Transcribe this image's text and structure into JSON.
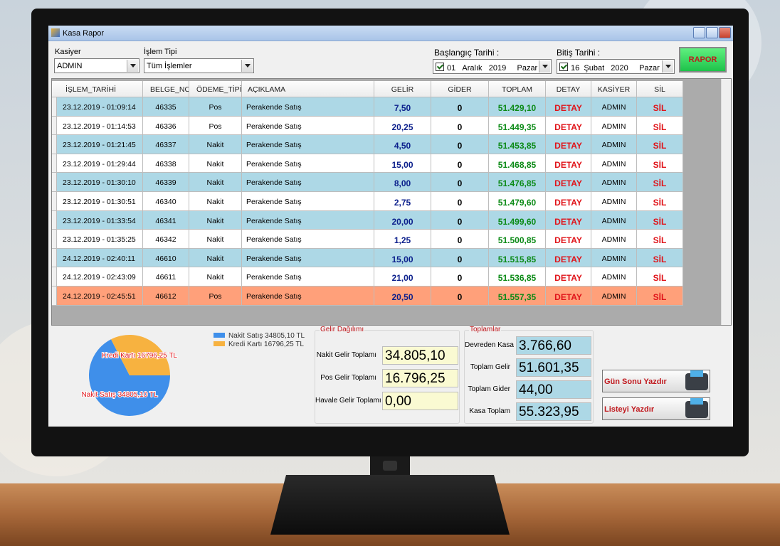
{
  "window": {
    "title": "Kasa Rapor"
  },
  "filters": {
    "kasiyer_label": "Kasiyer",
    "kasiyer": "ADMIN",
    "islem_label": "İşlem Tipi",
    "islem": "Tüm İşlemler",
    "start_label": "Başlangıç Tarihi :",
    "start": {
      "day": "01",
      "month": "Aralık",
      "year": "2019",
      "weekday": "Pazar"
    },
    "end_label": "Bitiş Tarihi :",
    "end": {
      "day": "16",
      "month": "Şubat",
      "year": "2020",
      "weekday": "Pazar"
    },
    "rapor": "RAPOR"
  },
  "table": {
    "columns": [
      "İŞLEM_TARİHİ",
      "BELGE_NO",
      "ÖDEME_TİPİ",
      "AÇIKLAMA",
      "GELİR",
      "GİDER",
      "TOPLAM",
      "DETAY",
      "KASİYER",
      "SİL"
    ],
    "rows": [
      [
        "23.12.2019 - 01:09:14",
        "46335",
        "Pos",
        "Perakende Satış",
        "7,50",
        "0",
        "51.429,10",
        "DETAY",
        "ADMIN",
        "SİL"
      ],
      [
        "23.12.2019 - 01:14:53",
        "46336",
        "Pos",
        "Perakende Satış",
        "20,25",
        "0",
        "51.449,35",
        "DETAY",
        "ADMIN",
        "SİL"
      ],
      [
        "23.12.2019 - 01:21:45",
        "46337",
        "Nakit",
        "Perakende Satış",
        "4,50",
        "0",
        "51.453,85",
        "DETAY",
        "ADMIN",
        "SİL"
      ],
      [
        "23.12.2019 - 01:29:44",
        "46338",
        "Nakit",
        "Perakende Satış",
        "15,00",
        "0",
        "51.468,85",
        "DETAY",
        "ADMIN",
        "SİL"
      ],
      [
        "23.12.2019 - 01:30:10",
        "46339",
        "Nakit",
        "Perakende Satış",
        "8,00",
        "0",
        "51.476,85",
        "DETAY",
        "ADMIN",
        "SİL"
      ],
      [
        "23.12.2019 - 01:30:51",
        "46340",
        "Nakit",
        "Perakende Satış",
        "2,75",
        "0",
        "51.479,60",
        "DETAY",
        "ADMIN",
        "SİL"
      ],
      [
        "23.12.2019 - 01:33:54",
        "46341",
        "Nakit",
        "Perakende Satış",
        "20,00",
        "0",
        "51.499,60",
        "DETAY",
        "ADMIN",
        "SİL"
      ],
      [
        "23.12.2019 - 01:35:25",
        "46342",
        "Nakit",
        "Perakende Satış",
        "1,25",
        "0",
        "51.500,85",
        "DETAY",
        "ADMIN",
        "SİL"
      ],
      [
        "24.12.2019 - 02:40:11",
        "46610",
        "Nakit",
        "Perakende Satış",
        "15,00",
        "0",
        "51.515,85",
        "DETAY",
        "ADMIN",
        "SİL"
      ],
      [
        "24.12.2019 - 02:43:09",
        "46611",
        "Nakit",
        "Perakende Satış",
        "21,00",
        "0",
        "51.536,85",
        "DETAY",
        "ADMIN",
        "SİL"
      ],
      [
        "24.12.2019 - 02:45:51",
        "46612",
        "Pos",
        "Perakende Satış",
        "20,50",
        "0",
        "51.557,35",
        "DETAY",
        "ADMIN",
        "SİL"
      ]
    ]
  },
  "pie": {
    "slices": [
      {
        "label": "Nakit Satış 34805,10 TL",
        "value": 34805.1,
        "color": "#3f8fea"
      },
      {
        "label": "Kredi Kartı 16796,25 TL",
        "value": 16796.25,
        "color": "#f7b240"
      }
    ]
  },
  "gelir": {
    "title": "Gelir Dağılımı",
    "items": [
      {
        "label": "Nakit Gelir Toplamı",
        "value": "34.805,10"
      },
      {
        "label": "Pos Gelir Toplamı",
        "value": "16.796,25"
      },
      {
        "label": "Havale Gelir Toplamı",
        "value": "0,00"
      }
    ]
  },
  "toplamlar": {
    "title": "Toplamlar",
    "items": [
      {
        "label": "Devreden Kasa",
        "value": "3.766,60"
      },
      {
        "label": "Toplam Gelir",
        "value": "51.601,35"
      },
      {
        "label": "Toplam Gider",
        "value": "44,00"
      },
      {
        "label": "Kasa Toplam",
        "value": "55.323,95"
      }
    ]
  },
  "buttons": [
    "Gün Sonu Yazdır",
    "Listeyi Yazdır"
  ]
}
